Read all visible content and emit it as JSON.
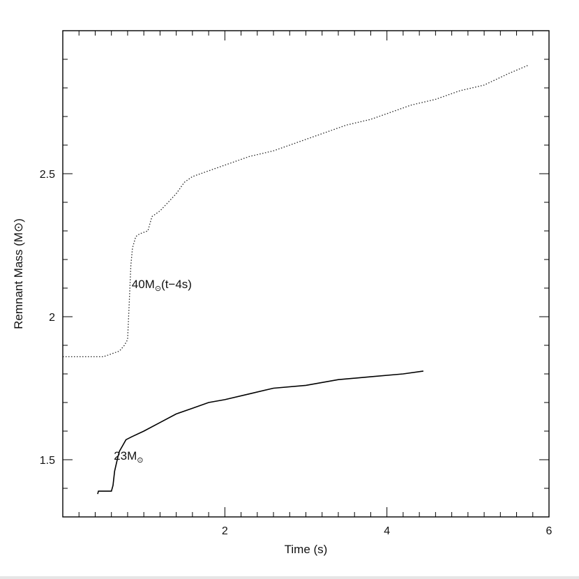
{
  "chart_data": {
    "type": "line",
    "title": "",
    "xlabel": "Time (s)",
    "ylabel": "Remnant Mass (M⊙)",
    "xlim": [
      0,
      6
    ],
    "ylim": [
      1.3,
      3.0
    ],
    "xticks_labeled": [
      {
        "value": 2,
        "label": "2"
      },
      {
        "value": 4,
        "label": "4"
      },
      {
        "value": 6,
        "label": "6"
      }
    ],
    "yticks_labeled": [
      {
        "value": 1.5,
        "label": "1.5"
      },
      {
        "value": 2.0,
        "label": "2"
      },
      {
        "value": 2.5,
        "label": "2.5"
      }
    ],
    "x_minor_step": 0.2,
    "y_minor_step": 0.1,
    "grid": false,
    "series": [
      {
        "name": "40M⊙(t−4s)",
        "style": "dotted",
        "color": "#222222",
        "points": [
          [
            0.0,
            1.86
          ],
          [
            0.3,
            1.86
          ],
          [
            0.5,
            1.86
          ],
          [
            0.6,
            1.87
          ],
          [
            0.7,
            1.88
          ],
          [
            0.76,
            1.9
          ],
          [
            0.8,
            1.92
          ],
          [
            0.82,
            2.05
          ],
          [
            0.84,
            2.18
          ],
          [
            0.86,
            2.24
          ],
          [
            0.9,
            2.28
          ],
          [
            0.95,
            2.29
          ],
          [
            1.05,
            2.3
          ],
          [
            1.1,
            2.35
          ],
          [
            1.2,
            2.37
          ],
          [
            1.3,
            2.4
          ],
          [
            1.4,
            2.43
          ],
          [
            1.5,
            2.47
          ],
          [
            1.6,
            2.49
          ],
          [
            1.8,
            2.51
          ],
          [
            2.0,
            2.53
          ],
          [
            2.3,
            2.56
          ],
          [
            2.6,
            2.58
          ],
          [
            2.9,
            2.61
          ],
          [
            3.2,
            2.64
          ],
          [
            3.5,
            2.67
          ],
          [
            3.8,
            2.69
          ],
          [
            4.0,
            2.71
          ],
          [
            4.3,
            2.74
          ],
          [
            4.6,
            2.76
          ],
          [
            4.9,
            2.79
          ],
          [
            5.2,
            2.81
          ],
          [
            5.5,
            2.85
          ],
          [
            5.75,
            2.88
          ]
        ]
      },
      {
        "name": "23M⊙",
        "style": "solid",
        "color": "#000000",
        "points": [
          [
            0.43,
            1.38
          ],
          [
            0.44,
            1.39
          ],
          [
            0.6,
            1.39
          ],
          [
            0.62,
            1.41
          ],
          [
            0.64,
            1.46
          ],
          [
            0.68,
            1.51
          ],
          [
            0.7,
            1.53
          ],
          [
            0.74,
            1.55
          ],
          [
            0.78,
            1.57
          ],
          [
            0.85,
            1.58
          ],
          [
            1.0,
            1.6
          ],
          [
            1.2,
            1.63
          ],
          [
            1.4,
            1.66
          ],
          [
            1.6,
            1.68
          ],
          [
            1.8,
            1.7
          ],
          [
            2.0,
            1.71
          ],
          [
            2.3,
            1.73
          ],
          [
            2.6,
            1.75
          ],
          [
            3.0,
            1.76
          ],
          [
            3.4,
            1.78
          ],
          [
            3.8,
            1.79
          ],
          [
            4.2,
            1.8
          ],
          [
            4.45,
            1.81
          ]
        ]
      }
    ],
    "annotations": [
      {
        "text": "40M",
        "sub": "⊙",
        "tail": "(t−4s)",
        "x": 0.85,
        "y": 2.1
      },
      {
        "text": "23M",
        "sub": "⊙",
        "tail": "",
        "x": 0.63,
        "y": 1.5
      }
    ]
  }
}
